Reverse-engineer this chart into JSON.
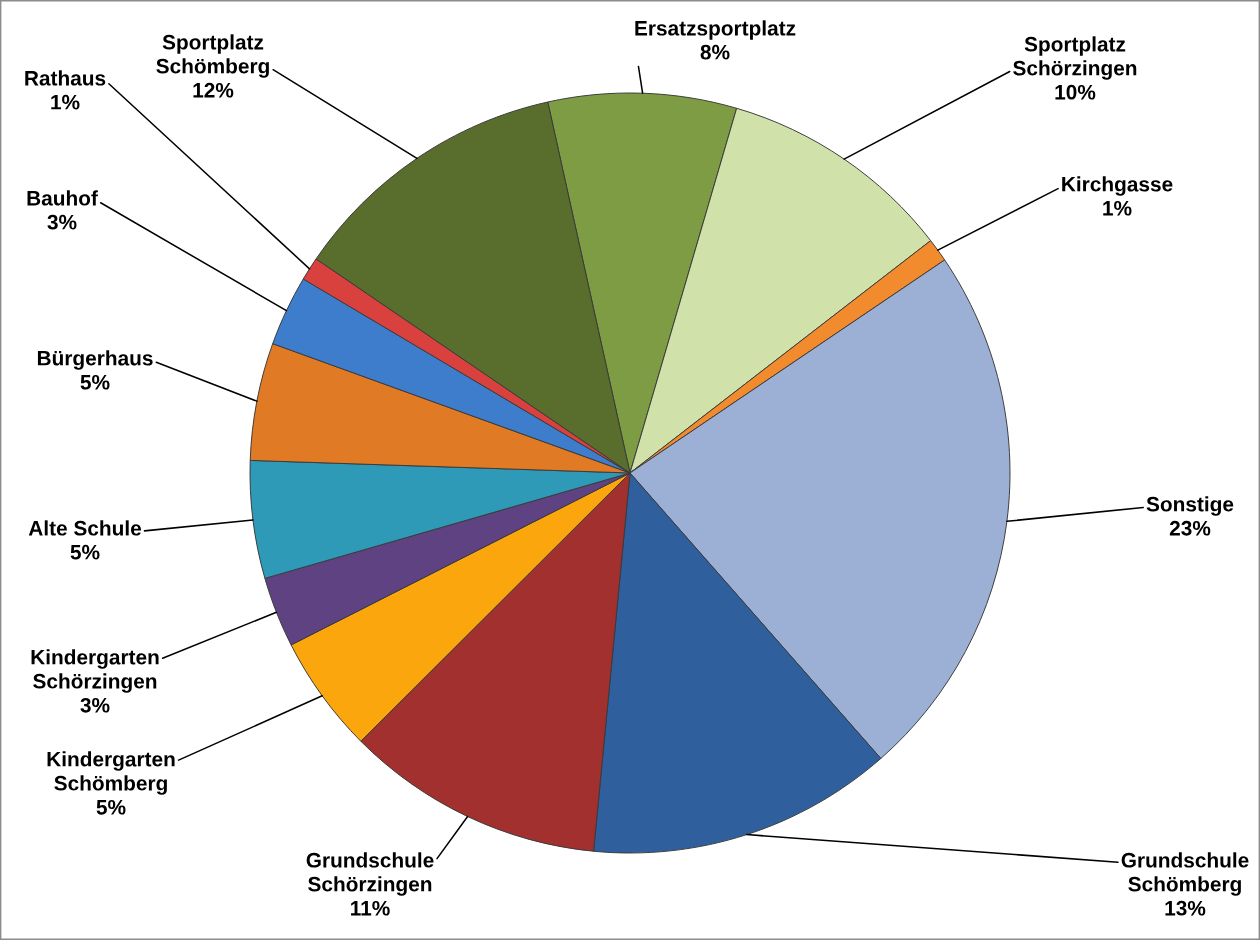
{
  "chart_data": {
    "type": "pie",
    "categories": [
      "Ersatzsportplatz",
      "Sportplatz Schörzingen",
      "Kirchgasse",
      "Sonstige",
      "Grundschule Schömberg",
      "Grundschule Schörzingen",
      "Kindergarten Schömberg",
      "Kindergarten Schörzingen",
      "Alte Schule",
      "Bürgerhaus",
      "Bauhof",
      "Rathaus",
      "Sportplatz Schömberg"
    ],
    "values": [
      8,
      10,
      1,
      23,
      13,
      11,
      5,
      3,
      5,
      5,
      3,
      1,
      12
    ],
    "value_labels": [
      "8%",
      "10%",
      "1%",
      "23%",
      "13%",
      "11%",
      "5%",
      "3%",
      "5%",
      "5%",
      "3%",
      "1%",
      "12%"
    ],
    "colors": [
      "#7d9c44",
      "#d0e2aa",
      "#f28a2e",
      "#9cb0d6",
      "#2f5f9c",
      "#a1302e",
      "#fba60c",
      "#5f4282",
      "#2f9ab8",
      "#e07a25",
      "#3e7dcc",
      "#d9413e",
      "#596e2c"
    ]
  }
}
